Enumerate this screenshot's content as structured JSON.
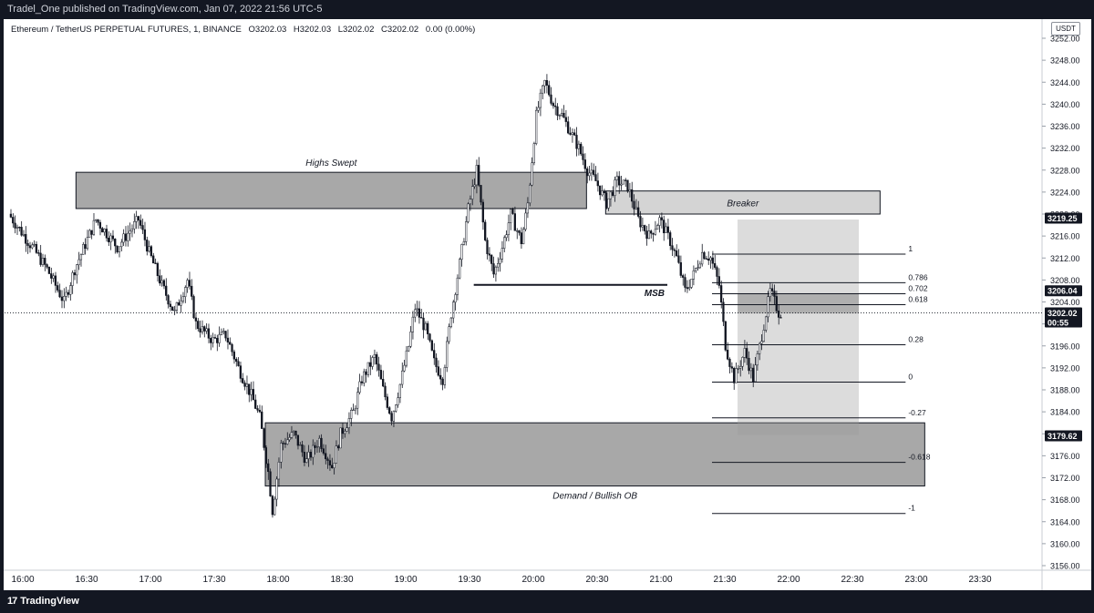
{
  "header": {
    "published_by": "Tradel_One published on TradingView.com, Jan 07, 2022 21:56 UTC-5"
  },
  "symbol": {
    "title": "Ethereum / TetherUS PERPETUAL FUTURES, 1, BINANCE",
    "open": "O3202.03",
    "high": "H3202.03",
    "low": "L3202.02",
    "close": "C3202.02",
    "change": "0.00 (0.00%)"
  },
  "currency": "USDT",
  "footer": {
    "brand": "TradingView",
    "logo_mark": "17"
  },
  "colors": {
    "candle_fill": "#ffffff",
    "candle_dark": "#131722",
    "zone_fill": "#a8a8a8",
    "box_fill": "#d4d4d4",
    "label_dark": "#131722"
  },
  "chart_data": {
    "type": "candlestick",
    "x_axis_ticks": [
      "16:00",
      "16:30",
      "17:00",
      "17:30",
      "18:00",
      "18:30",
      "19:00",
      "19:30",
      "20:00",
      "20:30",
      "21:00",
      "21:30",
      "22:00",
      "22:30",
      "23:00",
      "23:30"
    ],
    "y_axis_ticks": [
      "3252.00",
      "3248.00",
      "3244.00",
      "3240.00",
      "3236.00",
      "3232.00",
      "3228.00",
      "3224.00",
      "3220.00",
      "3216.00",
      "3212.00",
      "3208.00",
      "3204.00",
      "3200.00",
      "3196.00",
      "3192.00",
      "3188.00",
      "3184.00",
      "3180.00",
      "3176.00",
      "3172.00",
      "3168.00",
      "3164.00",
      "3160.00",
      "3156.00"
    ],
    "ylim": [
      3155,
      3254
    ],
    "price_labels": [
      {
        "value": 3219.25,
        "text": "3219.25",
        "style": "dark"
      },
      {
        "value": 3206.04,
        "text": "3206.04",
        "style": "dark"
      },
      {
        "value": 3202.02,
        "text": "3202.02",
        "sub": "00:55",
        "style": "dark"
      },
      {
        "value": 3179.62,
        "text": "3179.62",
        "style": "dark"
      }
    ],
    "current_price": 3202.02,
    "zones": [
      {
        "label": "Highs Swept",
        "x0": "16:25",
        "x1": "20:25",
        "top": 3227.6,
        "bottom": 3221.0,
        "style": "zone"
      },
      {
        "label": "Breaker",
        "x0": "20:34",
        "x1": "22:43",
        "top": 3224.2,
        "bottom": 3220.0,
        "style": "box"
      },
      {
        "label": "Demand / Bullish OB",
        "x0": "17:54",
        "x1": "23:04",
        "top": 3182.0,
        "bottom": 3170.5,
        "style": "zone"
      }
    ],
    "msb": {
      "label": "MSB",
      "x0": "19:32",
      "x1": "21:03",
      "y": 3207.1
    },
    "position_box": {
      "x0": "21:36",
      "x1": "22:33",
      "top": 3219.0,
      "bottom": 3179.8,
      "entry_top": 3205.6,
      "entry_bottom": 3201.9
    },
    "fib_levels": [
      {
        "label": "1",
        "value": 3212.7
      },
      {
        "label": "0.786",
        "value": 3207.5
      },
      {
        "label": "0.702",
        "value": 3205.5
      },
      {
        "label": "0.618",
        "value": 3203.5
      },
      {
        "label": "0.28",
        "value": 3196.2
      },
      {
        "label": "0",
        "value": 3189.4
      },
      {
        "label": "-0.27",
        "value": 3182.9
      },
      {
        "label": "-0.618",
        "value": 3174.8
      },
      {
        "label": "-1",
        "value": 3165.5
      }
    ],
    "fib_x0": "21:24",
    "fib_x1": "22:55",
    "price_path": [
      [
        "15:54",
        3220
      ],
      [
        "16:05",
        3214
      ],
      [
        "16:12",
        3210
      ],
      [
        "16:20",
        3204
      ],
      [
        "16:25",
        3210
      ],
      [
        "16:35",
        3219
      ],
      [
        "16:45",
        3214
      ],
      [
        "16:55",
        3219
      ],
      [
        "17:00",
        3213
      ],
      [
        "17:06",
        3207
      ],
      [
        "17:12",
        3202
      ],
      [
        "17:18",
        3208
      ],
      [
        "17:22",
        3200
      ],
      [
        "17:30",
        3197
      ],
      [
        "17:36",
        3198
      ],
      [
        "17:42",
        3192
      ],
      [
        "17:48",
        3187
      ],
      [
        "17:52",
        3183
      ],
      [
        "17:56",
        3173
      ],
      [
        "17:58",
        3166
      ],
      [
        "18:02",
        3178
      ],
      [
        "18:08",
        3180
      ],
      [
        "18:14",
        3175
      ],
      [
        "18:20",
        3179
      ],
      [
        "18:26",
        3174
      ],
      [
        "18:30",
        3180
      ],
      [
        "18:36",
        3184
      ],
      [
        "18:40",
        3190
      ],
      [
        "18:46",
        3194
      ],
      [
        "18:50",
        3188
      ],
      [
        "18:54",
        3183
      ],
      [
        "18:58",
        3189
      ],
      [
        "19:02",
        3196
      ],
      [
        "19:05",
        3203
      ],
      [
        "19:10",
        3199
      ],
      [
        "19:14",
        3193
      ],
      [
        "19:18",
        3190
      ],
      [
        "19:22",
        3202
      ],
      [
        "19:26",
        3211
      ],
      [
        "19:30",
        3221
      ],
      [
        "19:34",
        3228
      ],
      [
        "19:38",
        3215
      ],
      [
        "19:42",
        3209
      ],
      [
        "19:46",
        3214
      ],
      [
        "19:50",
        3220
      ],
      [
        "19:55",
        3215
      ],
      [
        "19:58",
        3222
      ],
      [
        "20:02",
        3238
      ],
      [
        "20:06",
        3244
      ],
      [
        "20:10",
        3240
      ],
      [
        "20:14",
        3238
      ],
      [
        "20:18",
        3235
      ],
      [
        "20:22",
        3232
      ],
      [
        "20:26",
        3228
      ],
      [
        "20:30",
        3226
      ],
      [
        "20:35",
        3222
      ],
      [
        "20:40",
        3226
      ],
      [
        "20:45",
        3225
      ],
      [
        "20:50",
        3219
      ],
      [
        "20:55",
        3216
      ],
      [
        "21:00",
        3219
      ],
      [
        "21:05",
        3215
      ],
      [
        "21:08",
        3212
      ],
      [
        "21:12",
        3206
      ],
      [
        "21:16",
        3209
      ],
      [
        "21:20",
        3213
      ],
      [
        "21:24",
        3212
      ],
      [
        "21:28",
        3207
      ],
      [
        "21:31",
        3196
      ],
      [
        "21:35",
        3190
      ],
      [
        "21:40",
        3195
      ],
      [
        "21:44",
        3190
      ],
      [
        "21:48",
        3198
      ],
      [
        "21:52",
        3206
      ],
      [
        "21:55",
        3203
      ],
      [
        "21:56",
        3202
      ]
    ]
  }
}
